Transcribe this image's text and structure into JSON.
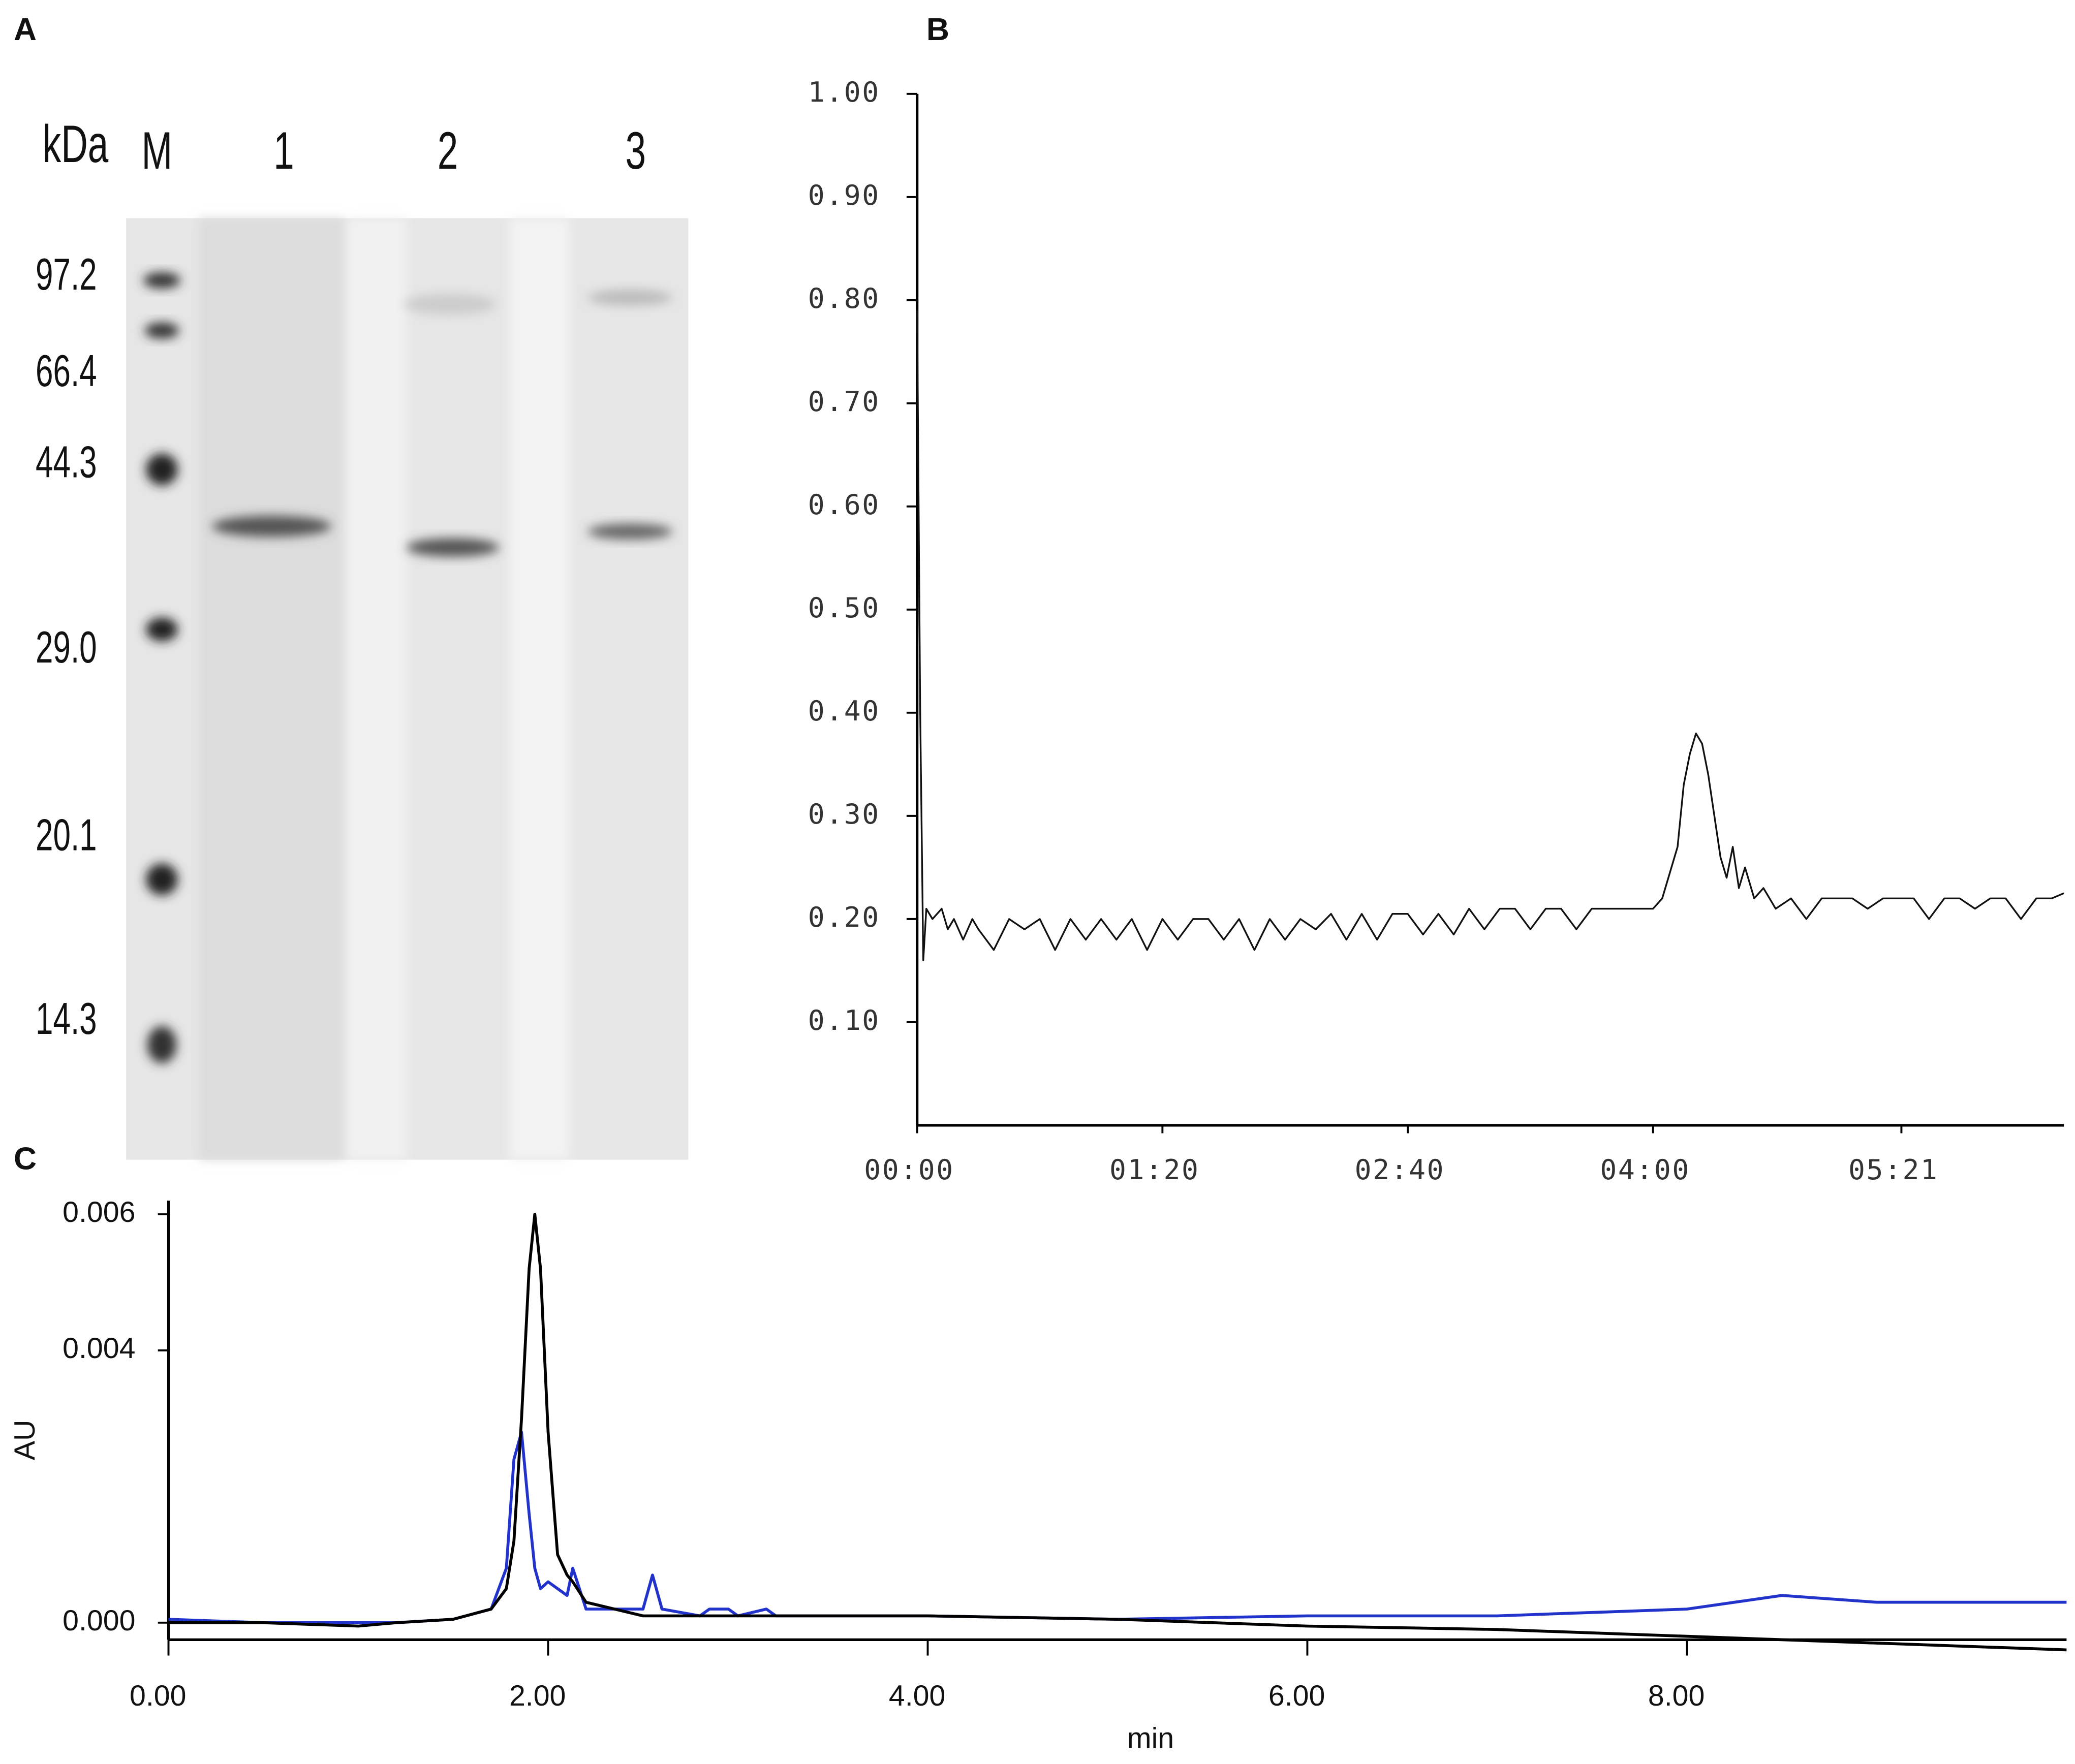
{
  "gel": {
    "panel": "A",
    "unit": "kDa",
    "lanes": [
      "M",
      "1",
      "2",
      "3"
    ],
    "markers": [
      97.2,
      66.4,
      44.3,
      {
        "value": 29,
        "label": "29.0"
      },
      20.1,
      14.3
    ]
  },
  "chart_data": [
    {
      "type": "line",
      "panel": "B",
      "color": "#111111",
      "x": [
        0,
        1,
        2,
        3,
        5,
        8,
        10,
        12,
        15,
        18,
        20,
        25,
        30,
        35,
        40,
        45,
        50,
        55,
        60,
        65,
        70,
        75,
        80,
        85,
        90,
        95,
        100,
        105,
        110,
        115,
        120,
        125,
        130,
        135,
        140,
        145,
        150,
        155,
        160,
        165,
        170,
        175,
        180,
        185,
        190,
        195,
        200,
        205,
        210,
        215,
        220,
        225,
        230,
        235,
        240,
        243,
        246,
        248,
        250,
        252,
        254,
        256,
        258,
        260,
        262,
        264,
        266,
        268,
        270,
        273,
        276,
        280,
        285,
        290,
        295,
        300,
        305,
        310,
        315,
        320,
        325,
        330,
        335,
        340,
        345,
        350,
        355,
        360,
        365,
        370,
        374
      ],
      "values": [
        0.79,
        0.4,
        0.16,
        0.21,
        0.2,
        0.21,
        0.19,
        0.2,
        0.18,
        0.2,
        0.19,
        0.17,
        0.2,
        0.19,
        0.2,
        0.17,
        0.2,
        0.18,
        0.2,
        0.18,
        0.2,
        0.17,
        0.2,
        0.18,
        0.2,
        0.2,
        0.18,
        0.2,
        0.17,
        0.2,
        0.18,
        0.2,
        0.19,
        0.205,
        0.18,
        0.205,
        0.18,
        0.205,
        0.205,
        0.185,
        0.205,
        0.185,
        0.21,
        0.19,
        0.21,
        0.21,
        0.19,
        0.21,
        0.21,
        0.19,
        0.21,
        0.21,
        0.21,
        0.21,
        0.21,
        0.22,
        0.25,
        0.27,
        0.33,
        0.36,
        0.38,
        0.37,
        0.34,
        0.3,
        0.26,
        0.24,
        0.27,
        0.23,
        0.25,
        0.22,
        0.23,
        0.21,
        0.22,
        0.2,
        0.22,
        0.22,
        0.22,
        0.21,
        0.22,
        0.22,
        0.22,
        0.2,
        0.22,
        0.22,
        0.21,
        0.22,
        0.22,
        0.2,
        0.22,
        0.22,
        0.225
      ],
      "xlim": [
        0,
        374
      ],
      "ylim": [
        0,
        1.0
      ],
      "xticks": [
        {
          "value": 0,
          "label": "00:00"
        },
        {
          "value": 80,
          "label": "01:20"
        },
        {
          "value": 160,
          "label": "02:40"
        },
        {
          "value": 240,
          "label": "04:00"
        },
        {
          "value": 321,
          "label": "05:21"
        }
      ],
      "yticks": [
        {
          "value": 0.1,
          "label": "0.10"
        },
        {
          "value": 0.2,
          "label": "0.20"
        },
        {
          "value": 0.3,
          "label": "0.30"
        },
        {
          "value": 0.4,
          "label": "0.40"
        },
        {
          "value": 0.5,
          "label": "0.50"
        },
        {
          "value": 0.6,
          "label": "0.60"
        },
        {
          "value": 0.7,
          "label": "0.70"
        },
        {
          "value": 0.8,
          "label": "0.80"
        },
        {
          "value": 0.9,
          "label": "0.90"
        },
        {
          "value": 1.0,
          "label": "1.00"
        }
      ]
    },
    {
      "type": "line",
      "panel": "C",
      "y_label": "AU",
      "x_label": "min",
      "x": [
        0,
        0.5,
        1.0,
        1.2,
        1.5,
        1.7,
        1.78,
        1.82,
        1.86,
        1.9,
        1.93,
        1.96,
        2.0,
        2.05,
        2.1,
        2.13,
        2.2,
        2.5,
        2.55,
        2.6,
        2.8,
        2.85,
        2.95,
        3.0,
        3.15,
        3.2,
        3.5,
        4.0,
        5.0,
        6.0,
        7.0,
        8.0,
        8.5,
        9.0,
        10.0
      ],
      "series": [
        {
          "color": "#2233cc",
          "values": [
            5e-05,
            0,
            0,
            0,
            5e-05,
            0.0002,
            0.0008,
            0.0024,
            0.0028,
            0.0016,
            0.0008,
            0.0005,
            0.0006,
            0.0005,
            0.0004,
            0.0008,
            0.0002,
            0.0002,
            0.0007,
            0.0002,
            0.0001,
            0.0002,
            0.0002,
            0.0001,
            0.0002,
            0.0001,
            0.0001,
            0.0001,
            5e-05,
            0.0001,
            0.0001,
            0.0002,
            0.0004,
            0.0003,
            0.0003
          ]
        },
        {
          "color": "#000000",
          "values": [
            0,
            0,
            -5e-05,
            0,
            5e-05,
            0.0002,
            0.0005,
            0.0012,
            0.003,
            0.0052,
            0.006,
            0.0052,
            0.0028,
            0.001,
            0.0007,
            0.0006,
            0.0003,
            0.0001,
            0.0001,
            0.0001,
            0.0001,
            0.0001,
            0.0001,
            0.0001,
            0.0001,
            0.0001,
            0.0001,
            0.0001,
            5e-05,
            -5e-05,
            -0.0001,
            -0.0002,
            -0.00025,
            -0.0003,
            -0.0004
          ]
        }
      ],
      "xlim": [
        0,
        10.0
      ],
      "ylim": [
        -0.00025,
        0.0062
      ],
      "xticks": [
        {
          "value": 0,
          "label": "0.00"
        },
        {
          "value": 2,
          "label": "2.00"
        },
        {
          "value": 4,
          "label": "4.00"
        },
        {
          "value": 6,
          "label": "6.00"
        },
        {
          "value": 8,
          "label": "8.00"
        }
      ],
      "yticks": [
        {
          "value": 0,
          "label": "0.000"
        },
        {
          "value": 0.004,
          "label": "0.004"
        },
        {
          "value": 0.006,
          "label": "0.006"
        }
      ]
    }
  ]
}
